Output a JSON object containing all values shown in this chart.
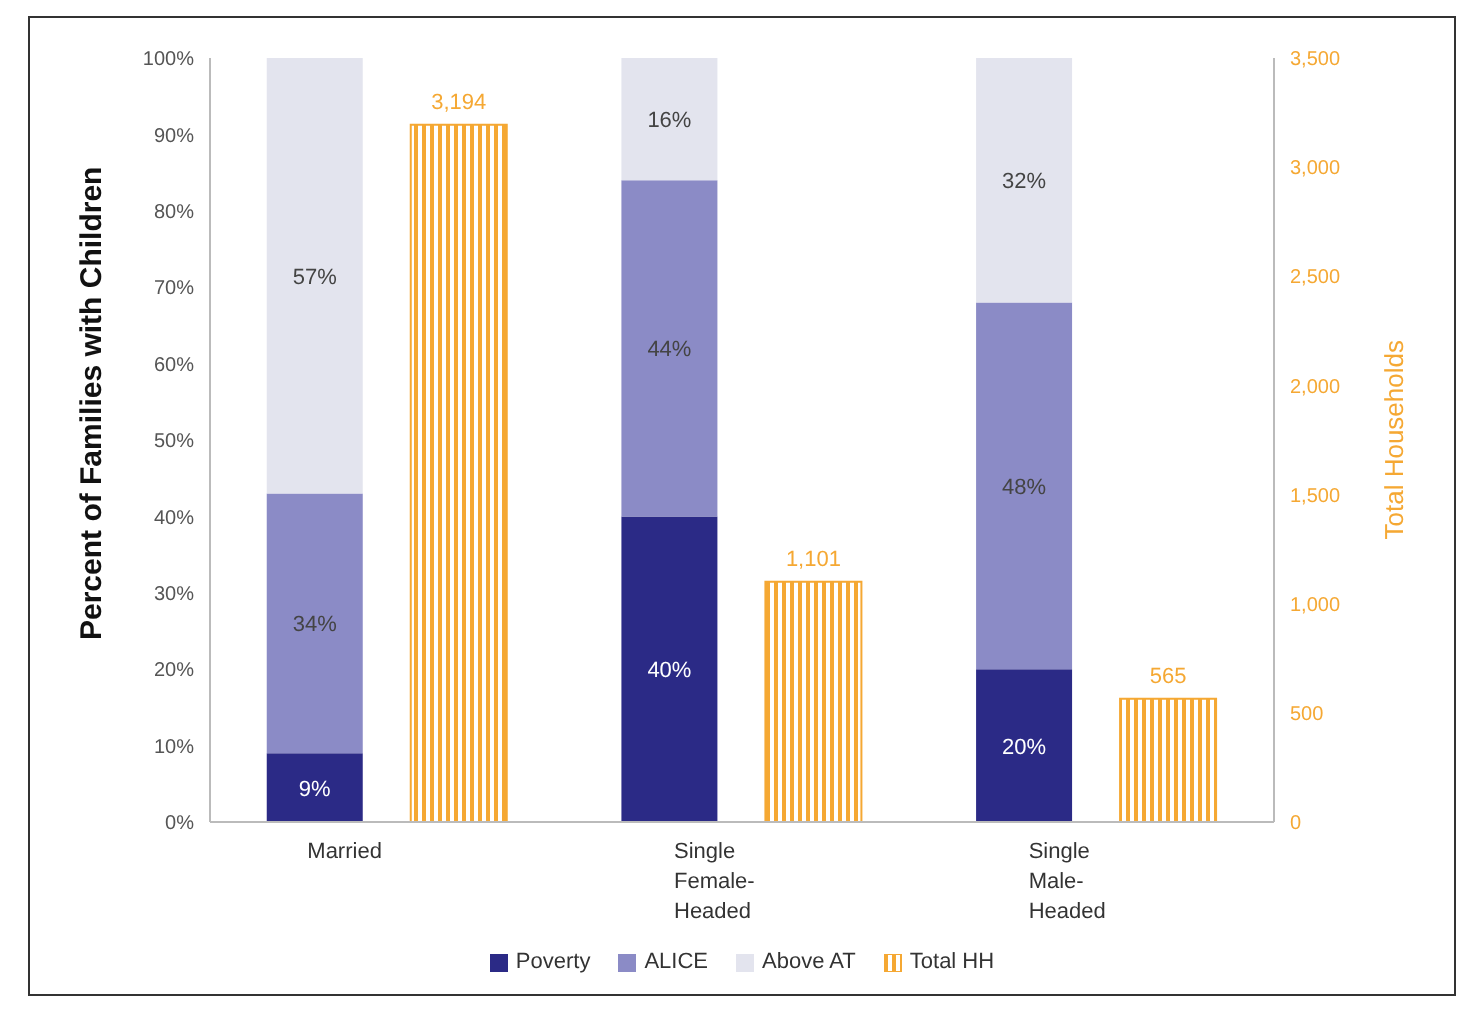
{
  "chart_data": {
    "type": "bar",
    "stacked": true,
    "categories": [
      "Married",
      "Single Female-Headed",
      "Single Male-Headed"
    ],
    "ylabel": "Percent of Families with Children",
    "y2label": "Total Households",
    "series": [
      {
        "name": "Poverty",
        "color": "#2b2a86",
        "values": [
          9,
          40,
          20
        ],
        "value_labels": [
          "9%",
          "40%",
          "20%"
        ]
      },
      {
        "name": "ALICE",
        "color": "#8b8bc6",
        "values": [
          34,
          44,
          48
        ],
        "value_labels": [
          "34%",
          "44%",
          "48%"
        ]
      },
      {
        "name": "Above AT",
        "color": "#e3e4ee",
        "values": [
          57,
          16,
          32
        ],
        "value_labels": [
          "57%",
          "16%",
          "32%"
        ]
      },
      {
        "name": "Total HH",
        "color": "#f5a833",
        "axis": "y2",
        "values": [
          3194,
          1101,
          565
        ],
        "value_labels": [
          "3,194",
          "1,101",
          "565"
        ]
      }
    ],
    "ylim": [
      0,
      100
    ],
    "yticks": [
      {
        "value": 0,
        "label": "0%"
      },
      {
        "value": 10,
        "label": "10%"
      },
      {
        "value": 20,
        "label": "20%"
      },
      {
        "value": 30,
        "label": "30%"
      },
      {
        "value": 40,
        "label": "40%"
      },
      {
        "value": 50,
        "label": "50%"
      },
      {
        "value": 60,
        "label": "60%"
      },
      {
        "value": 70,
        "label": "70%"
      },
      {
        "value": 80,
        "label": "80%"
      },
      {
        "value": 90,
        "label": "90%"
      },
      {
        "value": 100,
        "label": "100%"
      }
    ],
    "y2lim": [
      0,
      3500
    ],
    "y2ticks": [
      0,
      {
        "value": 500,
        "label": "500"
      },
      {
        "value": 1000,
        "label": "1,000"
      },
      {
        "value": 1500,
        "label": "1,500"
      },
      {
        "value": 2000,
        "label": "2,000"
      },
      {
        "value": 2500,
        "label": "2,500"
      },
      {
        "value": 3000,
        "label": "3,000"
      },
      {
        "value": 3500,
        "label": "3,500"
      }
    ],
    "grid": false,
    "legend": "bottom"
  }
}
